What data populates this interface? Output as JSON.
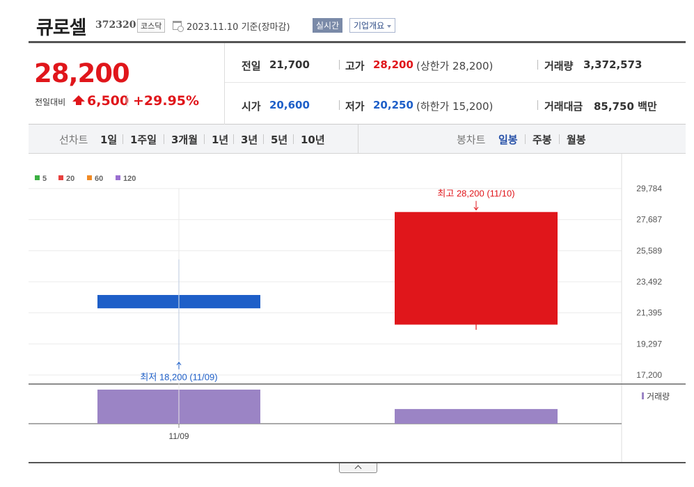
{
  "header": {
    "stock_name": "큐로셀",
    "stock_code": "372320",
    "market": "코스닥",
    "date": "2023.11.10",
    "basis": "기준(장마감)",
    "realtime_label": "실시간",
    "company_label": "기업개요"
  },
  "summary": {
    "price": "28,200",
    "change_label": "전일대비",
    "change": "6,500",
    "change_pct": "+29.95%",
    "prev_close_label": "전일",
    "prev_close": "21,700",
    "high_label": "고가",
    "high": "28,200",
    "upper_limit_text": "(상한가 28,200)",
    "volume_label": "거래량",
    "volume": "3,372,573",
    "open_label": "시가",
    "open": "20,600",
    "low_label": "저가",
    "low": "20,250",
    "lower_limit_text": "(하한가 15,200)",
    "amount_label": "거래대금",
    "amount": "85,750",
    "amount_unit": "백만"
  },
  "period_bar": {
    "line_title": "선차트",
    "line_items": [
      "1일",
      "1주일",
      "3개월",
      "1년",
      "3년",
      "5년",
      "10년"
    ],
    "candle_title": "봉차트",
    "candle_items": [
      "일봉",
      "주봉",
      "월봉"
    ],
    "candle_active": "일봉"
  },
  "colors": {
    "up": "#e0161b",
    "down": "#1e5fc8",
    "accent_blue": "#2751a8",
    "volume": "#9b84c5"
  },
  "chart_data": {
    "type": "candlestick",
    "legend": [
      {
        "name": "5",
        "color": "#3cb043"
      },
      {
        "name": "20",
        "color": "#e8413f"
      },
      {
        "name": "60",
        "color": "#f08a24"
      },
      {
        "name": "120",
        "color": "#9a6fd0"
      }
    ],
    "candles": [
      {
        "date": "11/09",
        "open": 22600,
        "close": 21700,
        "high": 25000,
        "low": 18200,
        "direction": "down",
        "volume": 1.0
      },
      {
        "date": "11/10",
        "open": 20600,
        "close": 28200,
        "high": 28200,
        "low": 20250,
        "direction": "up",
        "volume": 0.43
      }
    ],
    "y_ticks": [
      "29,784",
      "27,687",
      "25,589",
      "23,492",
      "21,395",
      "19,297",
      "17,200"
    ],
    "ylim": [
      17200,
      29784
    ],
    "x_tick_labels": [
      "11/09"
    ],
    "annotations": {
      "max_text": "최고 28,200 (11/10)",
      "min_text": "최저 18,200 (11/09)"
    },
    "volume_legend": "거래량"
  }
}
